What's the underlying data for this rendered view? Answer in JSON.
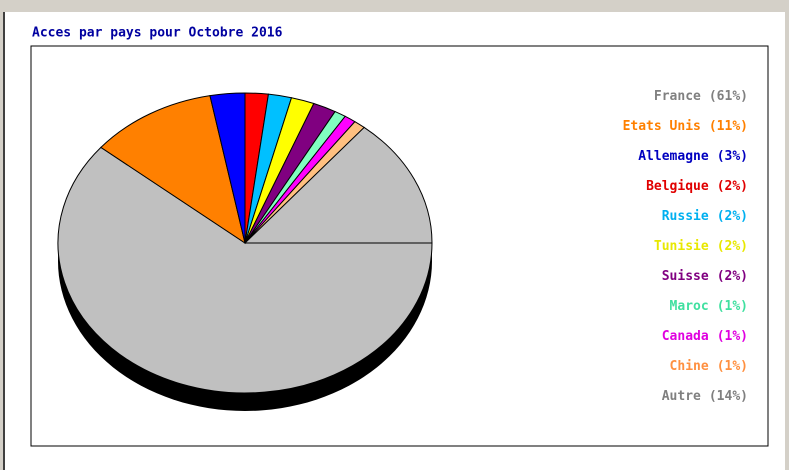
{
  "chart_data": {
    "type": "pie",
    "title": "Acces par pays pour Octobre 2016",
    "categories": [
      "France",
      "Etats Unis",
      "Allemagne",
      "Belgique",
      "Russie",
      "Tunisie",
      "Suisse",
      "Maroc",
      "Canada",
      "Chine",
      "Autre"
    ],
    "values": [
      61,
      11,
      3,
      2,
      2,
      2,
      2,
      1,
      1,
      1,
      14
    ],
    "value_labels": [
      "(61%)",
      "(11%)",
      "(3%)",
      "(2%)",
      "(2%)",
      "(2%)",
      "(2%)",
      "(1%)",
      "(1%)",
      "(1%)",
      "(14%)"
    ],
    "colors": [
      "#c0c0c0",
      "#ff8000",
      "#0000ff",
      "#ff0000",
      "#00c0ff",
      "#ffff00",
      "#800080",
      "#80ffc0",
      "#ff00ff",
      "#ffc080",
      "#c0c0c0"
    ],
    "label_colors": [
      "#808080",
      "#ff8000",
      "#0000c0",
      "#e00000",
      "#00b0f0",
      "#e8e800",
      "#800080",
      "#40e0a0",
      "#e000e0",
      "#ff9040",
      "#808080"
    ]
  }
}
